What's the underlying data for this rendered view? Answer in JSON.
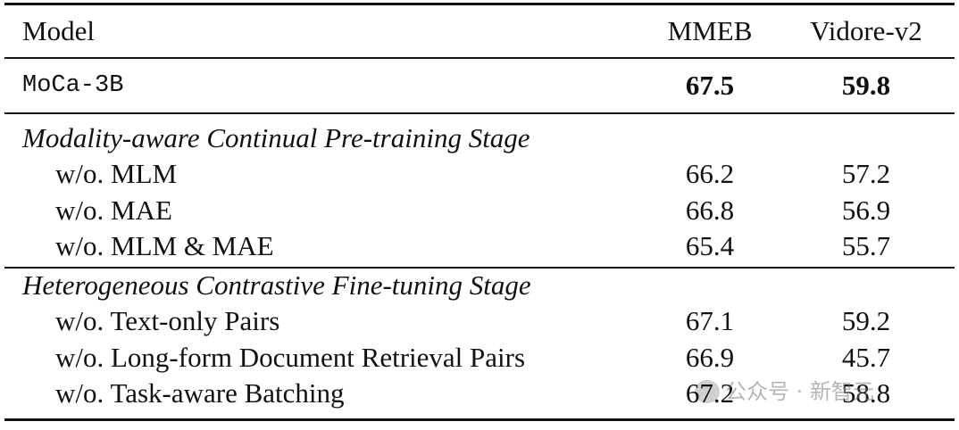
{
  "table": {
    "header": [
      "Model",
      "MMEB",
      "Vidore-v2"
    ],
    "main": [
      "MoCa-3B",
      "67.5",
      "59.8"
    ],
    "sections": [
      {
        "title": "Modality-aware Continual Pre-training Stage",
        "rows": [
          [
            "w/o. MLM",
            "66.2",
            "57.2"
          ],
          [
            "w/o. MAE",
            "66.8",
            "56.9"
          ],
          [
            "w/o. MLM & MAE",
            "65.4",
            "55.7"
          ]
        ]
      },
      {
        "title": "Heterogeneous Contrastive Fine-tuning Stage",
        "rows": [
          [
            "w/o. Text-only Pairs",
            "67.1",
            "59.2"
          ],
          [
            "w/o. Long-form Document Retrieval Pairs",
            "66.9",
            "45.7"
          ],
          [
            "w/o. Task-aware Batching",
            "67.2",
            "58.8"
          ]
        ]
      }
    ]
  },
  "watermark": "公众号 · 新智元"
}
